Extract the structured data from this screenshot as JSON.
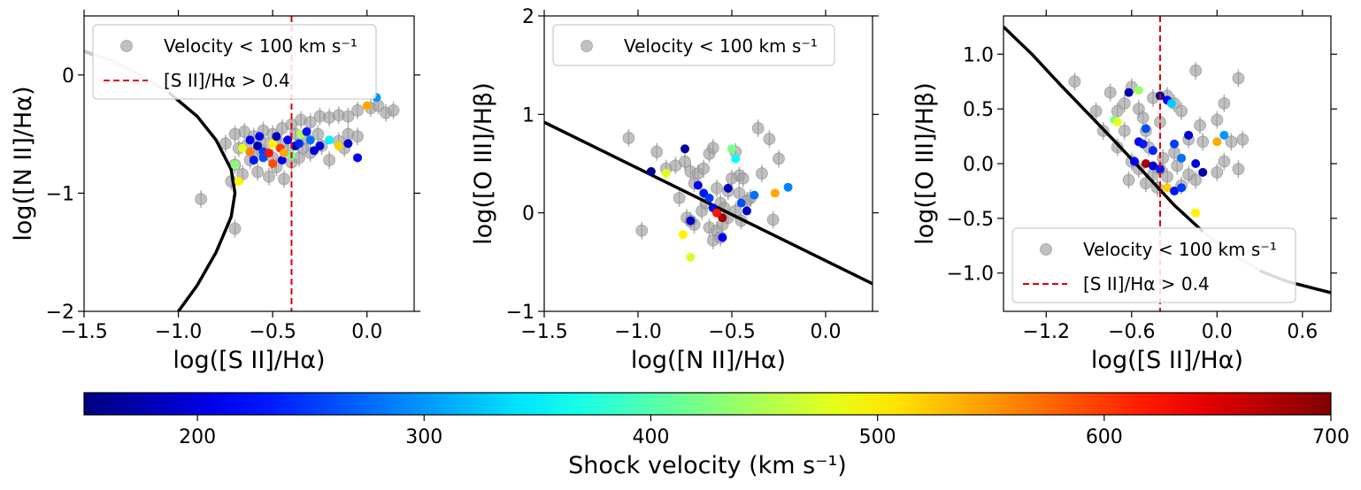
{
  "chart_data": [
    {
      "type": "scatter",
      "id": "p1",
      "xlabel": "log([S II]/Hα)",
      "ylabel": "log([N II]/Hα)",
      "xlim": [
        -1.5,
        0.25
      ],
      "ylim": [
        -2.0,
        0.5
      ],
      "xticks": [
        -1.5,
        -1.0,
        -0.5,
        0.0
      ],
      "xtick_labels": [
        "−1.5",
        "−1.0",
        "−0.5",
        "0.0"
      ],
      "yticks": [
        -2,
        -1,
        0
      ],
      "ytick_labels": [
        "−2",
        "−1",
        "0"
      ],
      "legend_position": "top-left",
      "legend_entries": [
        "Velocity < 100 km s⁻¹",
        "[S II]/Hα > 0.4"
      ],
      "vline_x": -0.4,
      "curve": [
        [
          -1.5,
          0.2
        ],
        [
          -1.35,
          0.12
        ],
        [
          -1.2,
          0.0
        ],
        [
          -1.05,
          -0.15
        ],
        [
          -0.9,
          -0.35
        ],
        [
          -0.8,
          -0.55
        ],
        [
          -0.72,
          -0.8
        ],
        [
          -0.7,
          -1.0
        ],
        [
          -0.72,
          -1.2
        ],
        [
          -0.8,
          -1.5
        ],
        [
          -0.9,
          -1.78
        ],
        [
          -1.0,
          -2.0
        ]
      ],
      "curve_faded_segment": [
        [
          -1.5,
          0.2
        ],
        [
          -1.35,
          0.12
        ],
        [
          -1.2,
          0.0
        ],
        [
          -1.05,
          -0.15
        ]
      ],
      "grey_points": [
        [
          -0.88,
          -1.05
        ],
        [
          -0.7,
          -1.3
        ],
        [
          -0.72,
          -0.9
        ],
        [
          -0.75,
          -0.58
        ],
        [
          -0.7,
          -0.5
        ],
        [
          -0.65,
          -0.48
        ],
        [
          -0.6,
          -0.52
        ],
        [
          -0.55,
          -0.47
        ],
        [
          -0.5,
          -0.5
        ],
        [
          -0.45,
          -0.45
        ],
        [
          -0.4,
          -0.42
        ],
        [
          -0.35,
          -0.38
        ],
        [
          -0.3,
          -0.4
        ],
        [
          -0.25,
          -0.35
        ],
        [
          -0.2,
          -0.36
        ],
        [
          -0.15,
          -0.34
        ],
        [
          -0.1,
          -0.35
        ],
        [
          -0.05,
          -0.3
        ],
        [
          0.02,
          -0.28
        ],
        [
          0.06,
          -0.26
        ],
        [
          0.1,
          -0.32
        ],
        [
          0.14,
          -0.3
        ],
        [
          -0.62,
          -0.72
        ],
        [
          -0.58,
          -0.82
        ],
        [
          -0.52,
          -0.86
        ],
        [
          -0.48,
          -0.78
        ],
        [
          -0.44,
          -0.88
        ],
        [
          -0.4,
          -0.74
        ],
        [
          -0.36,
          -0.7
        ],
        [
          -0.3,
          -0.66
        ],
        [
          -0.2,
          -0.72
        ],
        [
          -0.15,
          -0.56
        ],
        [
          -0.1,
          -0.5
        ],
        [
          -0.05,
          -0.52
        ],
        [
          -0.68,
          -0.62
        ],
        [
          -0.64,
          -0.6
        ],
        [
          -0.56,
          -0.64
        ],
        [
          -0.46,
          -0.58
        ],
        [
          -0.38,
          -0.5
        ],
        [
          -0.32,
          -0.55
        ],
        [
          -0.26,
          -0.5
        ],
        [
          -0.6,
          -0.66
        ],
        [
          -0.5,
          -0.7
        ],
        [
          -0.42,
          -0.64
        ],
        [
          -0.7,
          -0.76
        ],
        [
          -0.66,
          -0.84
        ],
        [
          -0.54,
          -0.58
        ],
        [
          -0.34,
          -0.62
        ],
        [
          -0.24,
          -0.6
        ],
        [
          -0.12,
          -0.62
        ]
      ],
      "colored_points": [
        [
          -0.62,
          -0.55,
          210
        ],
        [
          -0.58,
          -0.6,
          180
        ],
        [
          -0.55,
          -0.65,
          250
        ],
        [
          -0.5,
          -0.58,
          500
        ],
        [
          -0.46,
          -0.62,
          600
        ],
        [
          -0.42,
          -0.55,
          220
        ],
        [
          -0.38,
          -0.6,
          170
        ],
        [
          -0.35,
          -0.5,
          450
        ],
        [
          -0.3,
          -0.55,
          280
        ],
        [
          -0.25,
          -0.6,
          200
        ],
        [
          -0.2,
          -0.55,
          350
        ],
        [
          -0.15,
          -0.6,
          520
        ],
        [
          -0.1,
          -0.58,
          190
        ],
        [
          -0.05,
          -0.7,
          220
        ],
        [
          0.0,
          -0.26,
          540
        ],
        [
          0.05,
          -0.19,
          300
        ],
        [
          -0.66,
          -0.62,
          480
        ],
        [
          -0.6,
          -0.72,
          230
        ],
        [
          -0.55,
          -0.7,
          260
        ],
        [
          -0.5,
          -0.75,
          590
        ],
        [
          -0.45,
          -0.72,
          210
        ],
        [
          -0.4,
          -0.68,
          420
        ],
        [
          -0.7,
          -0.76,
          430
        ],
        [
          -0.68,
          -0.9,
          500
        ],
        [
          -0.48,
          -0.52,
          180
        ],
        [
          -0.32,
          -0.48,
          230
        ],
        [
          -0.28,
          -0.64,
          200
        ],
        [
          -0.52,
          -0.66,
          620
        ],
        [
          -0.44,
          -0.66,
          540
        ],
        [
          -0.36,
          -0.58,
          240
        ],
        [
          -0.62,
          -0.65,
          560
        ],
        [
          -0.57,
          -0.52,
          210
        ]
      ]
    },
    {
      "type": "scatter",
      "id": "p2",
      "xlabel": "log([N II]/Hα)",
      "ylabel": "log([O III]/Hβ)",
      "xlim": [
        -1.5,
        0.25
      ],
      "ylim": [
        -1.0,
        2.0
      ],
      "xticks": [
        -1.5,
        -1.0,
        -0.5,
        0.0
      ],
      "xtick_labels": [
        "−1.5",
        "−1.0",
        "−0.5",
        "0.0"
      ],
      "yticks": [
        -1,
        0,
        1,
        2
      ],
      "ytick_labels": [
        "−1",
        "0",
        "1",
        "2"
      ],
      "legend_position": "top-left",
      "legend_entries": [
        "Velocity < 100 km s⁻¹"
      ],
      "line": [
        [
          -1.5,
          0.92
        ],
        [
          0.25,
          -0.72
        ]
      ],
      "grey_points": [
        [
          -1.05,
          0.76
        ],
        [
          -0.98,
          -0.18
        ],
        [
          -0.9,
          0.62
        ],
        [
          -0.85,
          0.45
        ],
        [
          -0.8,
          0.48
        ],
        [
          -0.75,
          0.52
        ],
        [
          -0.72,
          0.42
        ],
        [
          -0.7,
          0.3
        ],
        [
          -0.68,
          0.4
        ],
        [
          -0.65,
          0.45
        ],
        [
          -0.62,
          0.6
        ],
        [
          -0.6,
          0.66
        ],
        [
          -0.58,
          0.25
        ],
        [
          -0.56,
          0.1
        ],
        [
          -0.52,
          0.22
        ],
        [
          -0.5,
          0.35
        ],
        [
          -0.48,
          0.62
        ],
        [
          -0.46,
          0.38
        ],
        [
          -0.44,
          0.35
        ],
        [
          -0.4,
          0.15
        ],
        [
          -0.36,
          0.86
        ],
        [
          -0.34,
          0.4
        ],
        [
          -0.3,
          0.75
        ],
        [
          -0.28,
          -0.07
        ],
        [
          -0.25,
          0.55
        ],
        [
          -0.78,
          0.15
        ],
        [
          -0.74,
          -0.05
        ],
        [
          -0.7,
          -0.12
        ],
        [
          -0.66,
          0.02
        ],
        [
          -0.62,
          -0.15
        ],
        [
          -0.58,
          -0.18
        ],
        [
          -0.55,
          -0.12
        ],
        [
          -0.52,
          -0.05
        ],
        [
          -0.48,
          0.02
        ],
        [
          -0.45,
          -0.08
        ],
        [
          -0.42,
          0.12
        ],
        [
          -0.6,
          -0.28
        ],
        [
          -0.56,
          -0.25
        ],
        [
          -0.64,
          0.1
        ],
        [
          -0.72,
          -0.08
        ],
        [
          -0.54,
          0.05
        ],
        [
          -0.46,
          0.2
        ]
      ],
      "colored_points": [
        [
          -0.93,
          0.42,
          160
        ],
        [
          -0.85,
          0.4,
          480
        ],
        [
          -0.75,
          0.65,
          170
        ],
        [
          -0.72,
          -0.08,
          190
        ],
        [
          -0.68,
          0.28,
          210
        ],
        [
          -0.65,
          0.2,
          230
        ],
        [
          -0.6,
          0.05,
          200
        ],
        [
          -0.58,
          0.0,
          160
        ],
        [
          -0.55,
          -0.05,
          680
        ],
        [
          -0.52,
          0.25,
          180
        ],
        [
          -0.5,
          0.65,
          420
        ],
        [
          -0.48,
          0.55,
          360
        ],
        [
          -0.45,
          0.1,
          260
        ],
        [
          -0.42,
          0.02,
          190
        ],
        [
          -0.38,
          0.18,
          280
        ],
        [
          -0.27,
          0.2,
          540
        ],
        [
          -0.2,
          0.26,
          290
        ],
        [
          -0.76,
          -0.22,
          500
        ],
        [
          -0.72,
          -0.45,
          470
        ],
        [
          -0.55,
          -0.25,
          220
        ],
        [
          -0.62,
          0.15,
          250
        ],
        [
          -0.58,
          0.0,
          620
        ]
      ]
    },
    {
      "type": "scatter",
      "id": "p3",
      "xlabel": "log([S II]/Hα)",
      "ylabel": "log([O III]/Hβ)",
      "xlim": [
        -1.5,
        0.8
      ],
      "ylim": [
        -1.35,
        1.35
      ],
      "xticks": [
        -1.2,
        -0.6,
        0.0,
        0.6
      ],
      "xtick_labels": [
        "−1.2",
        "−0.6",
        "0.0",
        "0.6"
      ],
      "yticks": [
        -1.0,
        -0.5,
        0.0,
        0.5,
        1.0
      ],
      "ytick_labels": [
        "−1.0",
        "−0.5",
        "0.0",
        "0.5",
        "1.0"
      ],
      "legend_position": "lower-left",
      "legend_entries": [
        "Velocity < 100 km s⁻¹",
        "[S II]/Hα > 0.4"
      ],
      "vline_x": -0.4,
      "curve": [
        [
          -1.5,
          1.25
        ],
        [
          -1.3,
          1.0
        ],
        [
          -1.1,
          0.72
        ],
        [
          -0.9,
          0.45
        ],
        [
          -0.7,
          0.18
        ],
        [
          -0.5,
          -0.1
        ],
        [
          -0.3,
          -0.38
        ],
        [
          -0.1,
          -0.62
        ],
        [
          0.1,
          -0.82
        ],
        [
          0.3,
          -0.98
        ],
        [
          0.5,
          -1.08
        ],
        [
          0.8,
          -1.18
        ]
      ],
      "curve_faded_segment": [
        [
          -0.1,
          -0.62
        ],
        [
          0.1,
          -0.82
        ],
        [
          0.3,
          -0.98
        ]
      ],
      "grey_points": [
        [
          -1.0,
          0.75
        ],
        [
          -0.85,
          0.48
        ],
        [
          -0.8,
          0.3
        ],
        [
          -0.75,
          0.65
        ],
        [
          -0.7,
          0.48
        ],
        [
          -0.65,
          0.55
        ],
        [
          -0.6,
          0.7
        ],
        [
          -0.55,
          0.5
        ],
        [
          -0.52,
          0.42
        ],
        [
          -0.5,
          0.3
        ],
        [
          -0.45,
          0.6
        ],
        [
          -0.4,
          0.38
        ],
        [
          -0.35,
          0.62
        ],
        [
          -0.3,
          0.55
        ],
        [
          -0.25,
          0.48
        ],
        [
          -0.2,
          0.22
        ],
        [
          -0.15,
          0.85
        ],
        [
          -0.12,
          0.35
        ],
        [
          -0.1,
          0.2
        ],
        [
          0.0,
          0.4
        ],
        [
          0.05,
          0.55
        ],
        [
          0.1,
          0.2
        ],
        [
          0.15,
          0.78
        ],
        [
          0.18,
          0.22
        ],
        [
          -0.7,
          0.15
        ],
        [
          -0.65,
          0.3
        ],
        [
          -0.6,
          0.02
        ],
        [
          -0.55,
          -0.05
        ],
        [
          -0.5,
          -0.18
        ],
        [
          -0.45,
          -0.1
        ],
        [
          -0.4,
          -0.05
        ],
        [
          -0.35,
          -0.12
        ],
        [
          -0.3,
          0.1
        ],
        [
          -0.25,
          -0.2
        ],
        [
          -0.2,
          -0.1
        ],
        [
          -0.15,
          -0.15
        ],
        [
          0.0,
          -0.08
        ],
        [
          0.05,
          0.02
        ],
        [
          0.15,
          -0.05
        ],
        [
          -0.48,
          0.15
        ],
        [
          -0.38,
          0.05
        ],
        [
          -0.28,
          -0.02
        ],
        [
          -0.62,
          -0.15
        ],
        [
          -0.42,
          -0.22
        ]
      ],
      "colored_points": [
        [
          -0.72,
          0.4,
          420
        ],
        [
          -0.7,
          0.38,
          480
        ],
        [
          -0.62,
          0.65,
          170
        ],
        [
          -0.55,
          0.2,
          220
        ],
        [
          -0.52,
          0.18,
          230
        ],
        [
          -0.5,
          0.32,
          260
        ],
        [
          -0.45,
          0.12,
          240
        ],
        [
          -0.4,
          0.62,
          160
        ],
        [
          -0.35,
          0.58,
          220
        ],
        [
          -0.32,
          0.55,
          330
        ],
        [
          -0.3,
          0.18,
          250
        ],
        [
          -0.25,
          0.05,
          280
        ],
        [
          -0.2,
          0.26,
          190
        ],
        [
          -0.15,
          0.0,
          200
        ],
        [
          -0.1,
          -0.08,
          170
        ],
        [
          0.0,
          0.2,
          540
        ],
        [
          0.05,
          0.26,
          300
        ],
        [
          -0.58,
          0.02,
          210
        ],
        [
          -0.5,
          0.0,
          680
        ],
        [
          -0.45,
          -0.02,
          200
        ],
        [
          -0.35,
          -0.22,
          520
        ],
        [
          -0.3,
          -0.25,
          230
        ],
        [
          -0.25,
          -0.22,
          250
        ],
        [
          -0.15,
          -0.45,
          500
        ],
        [
          -0.55,
          0.67,
          440
        ],
        [
          -0.4,
          -0.05,
          230
        ]
      ]
    }
  ],
  "colorbar": {
    "label": "Shock velocity (km s⁻¹)",
    "vmin": 150,
    "vmax": 700,
    "ticks": [
      200,
      300,
      400,
      500,
      600,
      700
    ],
    "tick_labels": [
      "200",
      "300",
      "400",
      "500",
      "600",
      "700"
    ],
    "colormap": "jet"
  },
  "colors": {
    "grey_points": "#9e9e9e",
    "curve": "#000000",
    "curve_faded": "#c8c8c8",
    "vline": "#e00000"
  }
}
